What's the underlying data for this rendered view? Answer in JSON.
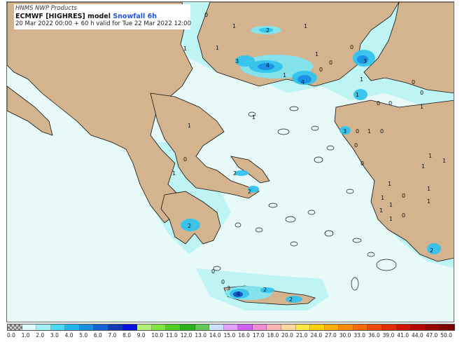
{
  "header": {
    "products": "HNMS NWP Products",
    "model": "ECMWF [HIGHRES] model",
    "field": "Snowfall 6h",
    "valid": "20 Mar 2022 00:00 + 60 h valid for Tue 22 Mar 2022 12:00"
  },
  "colors": {
    "land": "#d3b48f",
    "sea_background": "#e8faf8",
    "snow_light": "#bff4f4",
    "snow_1": "#7fe5f0",
    "snow_2": "#33c3ee",
    "snow_3": "#1a8fe6",
    "snow_4": "#1350c8",
    "coast": "#111111"
  },
  "contour_labels": [
    {
      "text": "0"
    },
    {
      "text": "1"
    },
    {
      "text": "2"
    },
    {
      "text": "1"
    },
    {
      "text": "1"
    },
    {
      "text": "1"
    },
    {
      "text": "0"
    },
    {
      "text": "1"
    },
    {
      "text": "3"
    },
    {
      "text": "4"
    },
    {
      "text": "4"
    },
    {
      "text": "0"
    },
    {
      "text": "0"
    },
    {
      "text": "3"
    },
    {
      "text": "1"
    },
    {
      "text": "0"
    },
    {
      "text": "0"
    },
    {
      "text": "0"
    },
    {
      "text": "1"
    },
    {
      "text": "0"
    },
    {
      "text": "1"
    },
    {
      "text": "1"
    },
    {
      "text": "3"
    },
    {
      "text": "0"
    },
    {
      "text": "1"
    },
    {
      "text": "0"
    },
    {
      "text": "1"
    },
    {
      "text": "0"
    },
    {
      "text": "1"
    },
    {
      "text": "0"
    },
    {
      "text": "1"
    },
    {
      "text": "1"
    },
    {
      "text": "0"
    },
    {
      "text": "1"
    },
    {
      "text": "1"
    },
    {
      "text": "0"
    },
    {
      "text": "1"
    },
    {
      "text": "1"
    },
    {
      "text": "1"
    },
    {
      "text": "1"
    },
    {
      "text": "2"
    },
    {
      "text": "2"
    },
    {
      "text": "2"
    },
    {
      "text": "1"
    },
    {
      "text": "1"
    },
    {
      "text": "0"
    },
    {
      "text": "2"
    },
    {
      "text": "0"
    },
    {
      "text": "3"
    },
    {
      "text": "4"
    },
    {
      "text": "2"
    },
    {
      "text": "2"
    },
    {
      "text": "1"
    },
    {
      "text": "0"
    }
  ],
  "legend": {
    "levels": [
      "0.0",
      "1.0",
      "2.0",
      "3.0",
      "4.0",
      "5.0",
      "6.0",
      "7.0",
      "8.0",
      "9.0",
      "10.0",
      "11.0",
      "12.0",
      "13.0",
      "14.0",
      "15.0",
      "16.0",
      "17.0",
      "18.0",
      "20.0",
      "21.0",
      "24.0",
      "27.0",
      "30.0",
      "33.0",
      "36.0",
      "39.0",
      "41.0",
      "44.0",
      "47.0",
      "50.0"
    ],
    "colors": [
      "checker",
      "#e0fcfc",
      "#9ff0f4",
      "#4cd9f4",
      "#22b6ee",
      "#1890e4",
      "#1464d6",
      "#1238b8",
      "#0a10e0",
      "#b4f07a",
      "#7ee63c",
      "#4cce24",
      "#28b418",
      "#66c85a",
      "#cfe0ff",
      "#e0a0ff",
      "#d060f0",
      "#f08cd2",
      "#ffb4b4",
      "#ffd8a0",
      "#ffe640",
      "#ffd000",
      "#ffae00",
      "#ff8c00",
      "#ff6a00",
      "#f04800",
      "#e02c00",
      "#d01400",
      "#b40000",
      "#980000",
      "#7a0000"
    ]
  }
}
